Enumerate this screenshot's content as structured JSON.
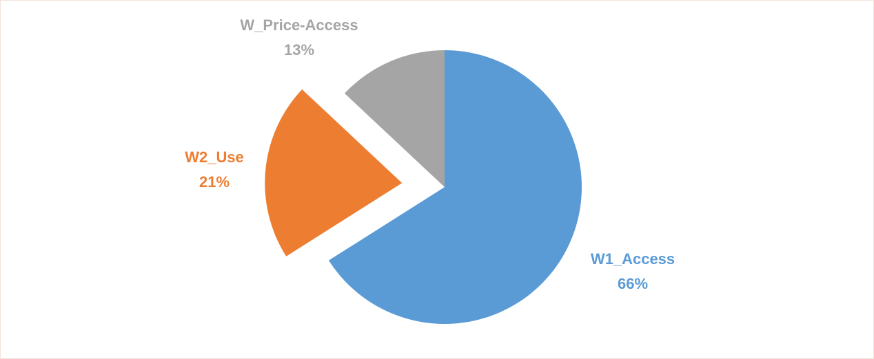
{
  "chart_data": {
    "type": "pie",
    "categories": [
      "W1_Access",
      "W2_Use",
      "W_Price-Access"
    ],
    "values": [
      66,
      21,
      13
    ],
    "value_labels": [
      "66%",
      "21%",
      "13%"
    ],
    "colors": [
      "#5b9bd5",
      "#ed7d31",
      "#a5a5a5"
    ]
  }
}
